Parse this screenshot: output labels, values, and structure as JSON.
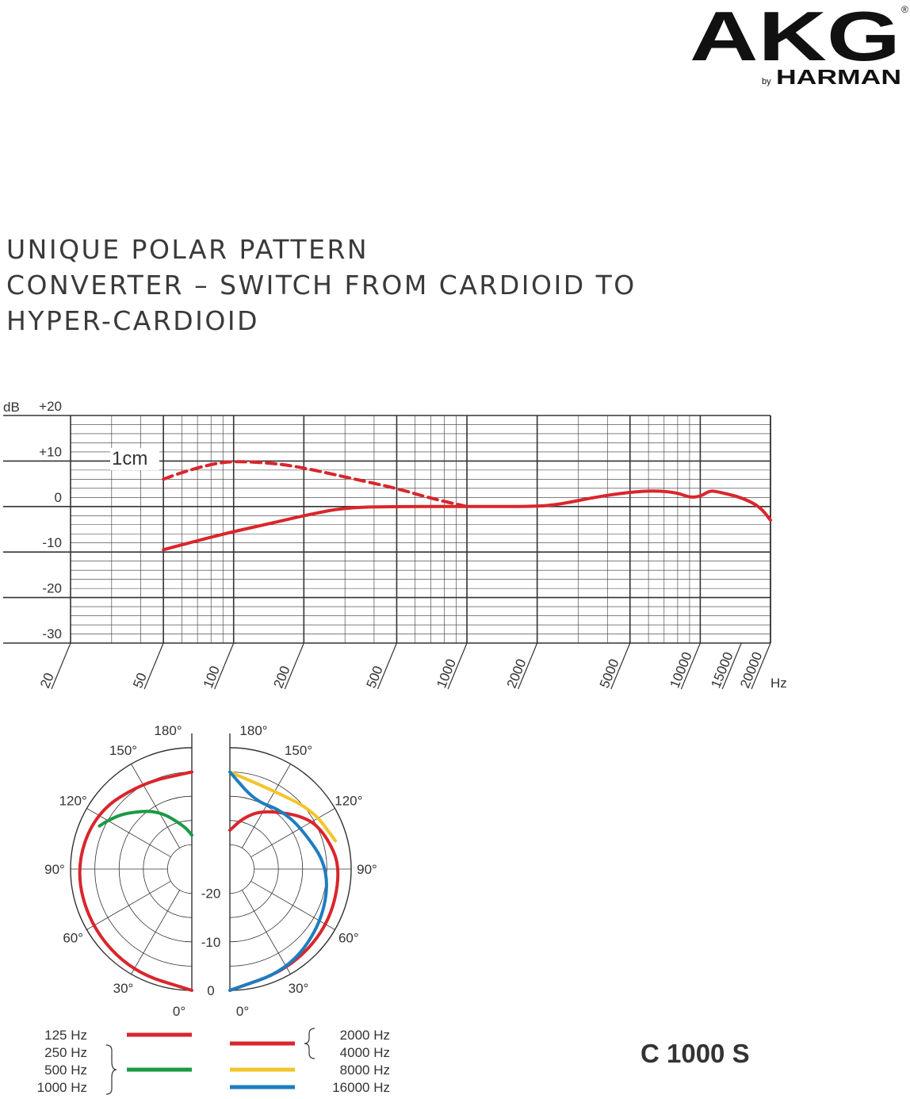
{
  "brand": {
    "logo_text": "AKG",
    "registered_mark": "®",
    "byline_by": "by",
    "byline_name": "HARMAN"
  },
  "heading": {
    "lines": [
      "UNIQUE POLAR PATTERN",
      "CONVERTER – SWITCH FROM CARDIOID TO",
      "HYPER-CARDIOID"
    ]
  },
  "model": "C 1000 S",
  "colors": {
    "red": "#d9262c",
    "green": "#1a9a45",
    "yellow": "#f4c52b",
    "blue": "#1e7dc0",
    "grid": "#333333"
  },
  "chart_data": [
    {
      "type": "line",
      "name": "frequency-response",
      "x_scale": "log",
      "xlim": [
        20,
        20000
      ],
      "ylim": [
        -30,
        20
      ],
      "y_unit": "dB",
      "x_unit": "Hz",
      "y_tick_labels": [
        "+20",
        "+10",
        "0",
        "-10",
        "-20",
        "-30"
      ],
      "y_tick_values": [
        20,
        10,
        0,
        -10,
        -20,
        -30
      ],
      "x_tick_labels": [
        "20",
        "50",
        "100",
        "200",
        "500",
        "1000",
        "2000",
        "5000",
        "10000",
        "15000",
        "20000"
      ],
      "x_tick_values": [
        20,
        50,
        100,
        200,
        500,
        1000,
        2000,
        5000,
        10000,
        15000,
        20000
      ],
      "annotation": "1cm",
      "series": [
        {
          "style": "solid",
          "color": "#d9262c",
          "points": [
            [
              50,
              -9.5
            ],
            [
              70,
              -7.5
            ],
            [
              100,
              -5.5
            ],
            [
              150,
              -3.5
            ],
            [
              200,
              -2
            ],
            [
              300,
              -0.2
            ],
            [
              500,
              0
            ],
            [
              1000,
              0
            ],
            [
              2000,
              0
            ],
            [
              2500,
              0.5
            ],
            [
              3500,
              2
            ],
            [
              5000,
              3.2
            ],
            [
              6500,
              3.5
            ],
            [
              8000,
              3
            ],
            [
              9000,
              2
            ],
            [
              10000,
              2.2
            ],
            [
              11000,
              3.5
            ],
            [
              12000,
              3.2
            ],
            [
              15000,
              2
            ],
            [
              18000,
              0
            ],
            [
              20000,
              -3
            ]
          ]
        },
        {
          "style": "dashed",
          "color": "#d9262c",
          "label": "1cm",
          "points": [
            [
              50,
              6
            ],
            [
              60,
              7.5
            ],
            [
              80,
              9.3
            ],
            [
              100,
              10
            ],
            [
              150,
              9.5
            ],
            [
              200,
              8.5
            ],
            [
              300,
              6.5
            ],
            [
              500,
              4
            ],
            [
              700,
              1.8
            ],
            [
              1000,
              0
            ]
          ]
        }
      ]
    },
    {
      "type": "polar",
      "name": "polar-pattern",
      "angle_labels_left": [
        "180°",
        "150°",
        "120°",
        "90°",
        "60°",
        "30°",
        "0°"
      ],
      "angle_labels_right": [
        "180°",
        "150°",
        "120°",
        "90°",
        "60°",
        "30°",
        "0°"
      ],
      "db_labels": [
        "-20",
        "-10",
        "0"
      ],
      "db_values": [
        -20,
        -10,
        0
      ],
      "left_series": [
        {
          "label_group": "125 Hz",
          "color": "#d9262c",
          "points": [
            [
              0,
              0
            ],
            [
              30,
              -0.5
            ],
            [
              60,
              -1
            ],
            [
              90,
              -1
            ],
            [
              120,
              -2
            ],
            [
              150,
              -4.5
            ],
            [
              180,
              -5
            ]
          ]
        },
        {
          "label_group": "250 Hz / 500 Hz / 1000 Hz",
          "color": "#1a9a45",
          "points": [
            [
              115,
              -4
            ],
            [
              120,
              -5
            ],
            [
              130,
              -7
            ],
            [
              150,
              -11
            ],
            [
              170,
              -16
            ],
            [
              180,
              -18
            ]
          ]
        }
      ],
      "right_series": [
        {
          "label_group": "2000 Hz / 4000 Hz",
          "color": "#d9262c",
          "points": [
            [
              0,
              0
            ],
            [
              30,
              -1
            ],
            [
              60,
              -1.5
            ],
            [
              90,
              -2
            ],
            [
              110,
              -4
            ],
            [
              125,
              -6
            ],
            [
              150,
              -11
            ],
            [
              165,
              -14
            ],
            [
              180,
              -17
            ]
          ]
        },
        {
          "label_group": "8000 Hz",
          "color": "#f4c52b",
          "points": [
            [
              105,
              -2.5
            ],
            [
              125,
              -4
            ],
            [
              150,
              -6.5
            ],
            [
              180,
              -5
            ]
          ]
        },
        {
          "label_group": "16000 Hz",
          "color": "#1e7dc0",
          "points": [
            [
              0,
              0
            ],
            [
              30,
              -1
            ],
            [
              60,
              -3
            ],
            [
              90,
              -4.5
            ],
            [
              120,
              -8
            ],
            [
              140,
              -9
            ],
            [
              160,
              -10
            ],
            [
              180,
              -5
            ]
          ]
        }
      ],
      "legend_left": {
        "labels": [
          "125 Hz",
          "250 Hz",
          "500 Hz",
          "1000 Hz"
        ],
        "lines": [
          {
            "color": "#d9262c",
            "label": "125 Hz"
          },
          {
            "color": "#1a9a45",
            "label": "250 Hz / 500 Hz / 1000 Hz"
          }
        ]
      },
      "legend_right": {
        "labels": [
          "2000 Hz",
          "4000 Hz",
          "8000 Hz",
          "16000 Hz"
        ],
        "lines": [
          {
            "color": "#d9262c",
            "label": "2000 Hz / 4000 Hz"
          },
          {
            "color": "#f4c52b",
            "label": "8000 Hz"
          },
          {
            "color": "#1e7dc0",
            "label": "16000 Hz"
          }
        ]
      }
    }
  ]
}
